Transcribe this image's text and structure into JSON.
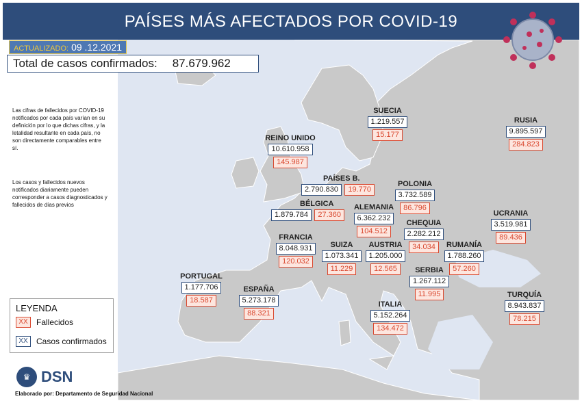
{
  "header": {
    "title": "PAÍSES MÁS AFECTADOS POR COVID-19"
  },
  "updated": {
    "label": "ACTUALIZADO:",
    "date": "09 .12.2021"
  },
  "total": {
    "label": "Total de casos confirmados:",
    "value": "87.679.962"
  },
  "notes": [
    "Las cifras de fallecidos por COVID-19 notificados por cada país varían en su definición por lo que dichas cifras, y la letalidad resultante en cada país, no son directamente comparables entre sí.",
    "Los casos y fallecidos nuevos notificados diariamente pueden corresponder a casos diagnosticados y fallecidos de días previos"
  ],
  "legend": {
    "title": "LEYENDA",
    "swatch": "XX",
    "deaths_label": "Fallecidos",
    "cases_label": "Casos confirmados"
  },
  "countries": {
    "suecia": {
      "name": "SUECIA",
      "cases": "1.219.557",
      "deaths": "15.177"
    },
    "rusia": {
      "name": "RUSIA",
      "cases": "9.895.597",
      "deaths": "284.823"
    },
    "reino_unido": {
      "name": "REINO UNIDO",
      "cases": "10.610.958",
      "deaths": "145.987"
    },
    "paises_bajos": {
      "name": "PAÍSES B.",
      "cases": "2.790.830",
      "deaths": "19.770"
    },
    "polonia": {
      "name": "POLONIA",
      "cases": "3.732.589",
      "deaths": "86.796"
    },
    "belgica": {
      "name": "BÉLGICA",
      "cases": "1.879.784",
      "deaths": "27.360"
    },
    "alemania": {
      "name": "ALEMANIA",
      "cases": "6.362.232",
      "deaths": "104.512"
    },
    "ucrania": {
      "name": "UCRANIA",
      "cases": "3.519.981",
      "deaths": "89.436"
    },
    "chequia": {
      "name": "CHEQUIA",
      "cases": "2.282.212",
      "deaths": "34.034"
    },
    "francia": {
      "name": "FRANCIA",
      "cases": "8.048.931",
      "deaths": "120.032"
    },
    "suiza": {
      "name": "SUIZA",
      "cases": "1.073.341",
      "deaths": "11.229"
    },
    "austria": {
      "name": "AUSTRIA",
      "cases": "1.205.000",
      "deaths": "12.565"
    },
    "rumania": {
      "name": "RUMANÍA",
      "cases": "1.788.260",
      "deaths": "57.260"
    },
    "portugal": {
      "name": "PORTUGAL",
      "cases": "1.177.706",
      "deaths": "18.587"
    },
    "espana": {
      "name": "ESPAÑA",
      "cases": "5.273.178",
      "deaths": "88.321"
    },
    "serbia": {
      "name": "SERBIA",
      "cases": "1.267.112",
      "deaths": "11.995"
    },
    "turquia": {
      "name": "TURQUÍA",
      "cases": "8.943.837",
      "deaths": "78.215"
    },
    "italia": {
      "name": "ITALIA",
      "cases": "5.152.264",
      "deaths": "134.472"
    }
  },
  "logo": {
    "text": "DSN"
  },
  "credit": "Elaborado por: Departamento de Seguridad Nacional",
  "colors": {
    "header": "#2e4d7b",
    "sea": "#dfe6f2",
    "land": "#c8c8c8",
    "deaths": "#d9482f",
    "cases_border": "#2e4d7b"
  },
  "icons": [
    "virus-illustration",
    "dsn-logo-icon"
  ]
}
